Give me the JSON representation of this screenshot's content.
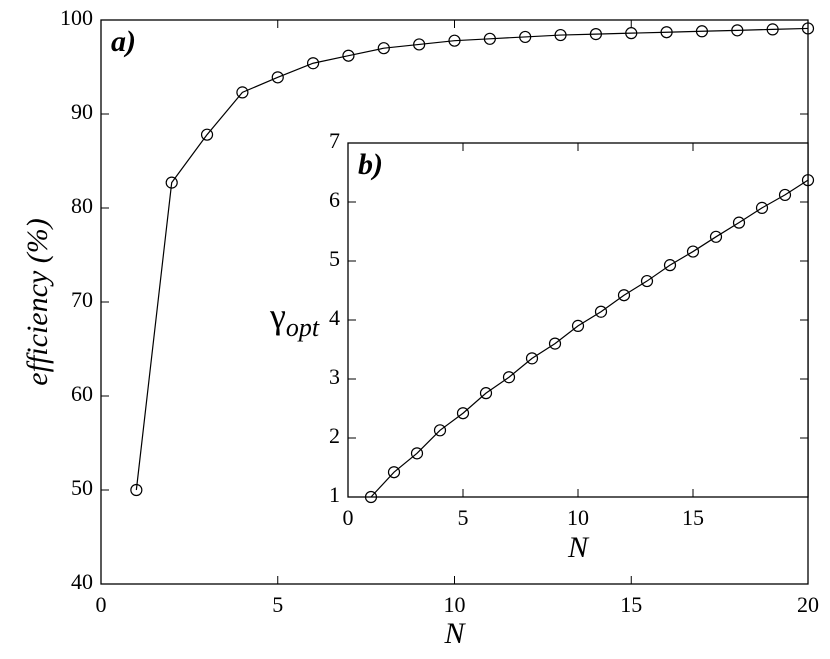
{
  "chart_data": [
    {
      "type": "line",
      "title": "a)",
      "x_label": "N",
      "y_label": "efficiency (%)",
      "x": [
        1,
        2,
        3,
        4,
        5,
        6,
        7,
        8,
        9,
        10,
        11,
        12,
        13,
        14,
        15,
        16,
        17,
        18,
        19,
        20
      ],
      "series": [
        {
          "color": "#000000",
          "values": [
            50,
            82.7,
            87.8,
            92.3,
            93.9,
            95.4,
            96.2,
            97,
            97.4,
            97.8,
            98,
            98.2,
            98.4,
            98.5,
            98.6,
            98.7,
            98.8,
            98.9,
            99,
            99.1
          ]
        }
      ],
      "xlim": [
        0,
        20
      ],
      "xticks": [
        0,
        5,
        10,
        15,
        20
      ],
      "ylim": [
        40,
        100
      ],
      "yticks": [
        40,
        50,
        60,
        70,
        80,
        90,
        100
      ]
    },
    {
      "type": "line",
      "title": "b)",
      "x_label": "N",
      "y_label": "γ",
      "y_label_subscript": "opt",
      "x": [
        1,
        2,
        3,
        4,
        5,
        6,
        7,
        8,
        9,
        10,
        11,
        12,
        13,
        14,
        15,
        16,
        17,
        18,
        19,
        20
      ],
      "series": [
        {
          "color": "#000000",
          "values": [
            1,
            1.42,
            1.74,
            2.13,
            2.42,
            2.76,
            3.03,
            3.35,
            3.6,
            3.9,
            4.14,
            4.42,
            4.66,
            4.93,
            5.16,
            5.41,
            5.65,
            5.9,
            6.12,
            6.37
          ]
        }
      ],
      "xlim": [
        0,
        20
      ],
      "xticks": [
        0,
        5,
        10,
        15
      ],
      "ylim": [
        1,
        7
      ],
      "yticks": [
        1,
        2,
        3,
        4,
        5,
        6,
        7
      ]
    }
  ]
}
